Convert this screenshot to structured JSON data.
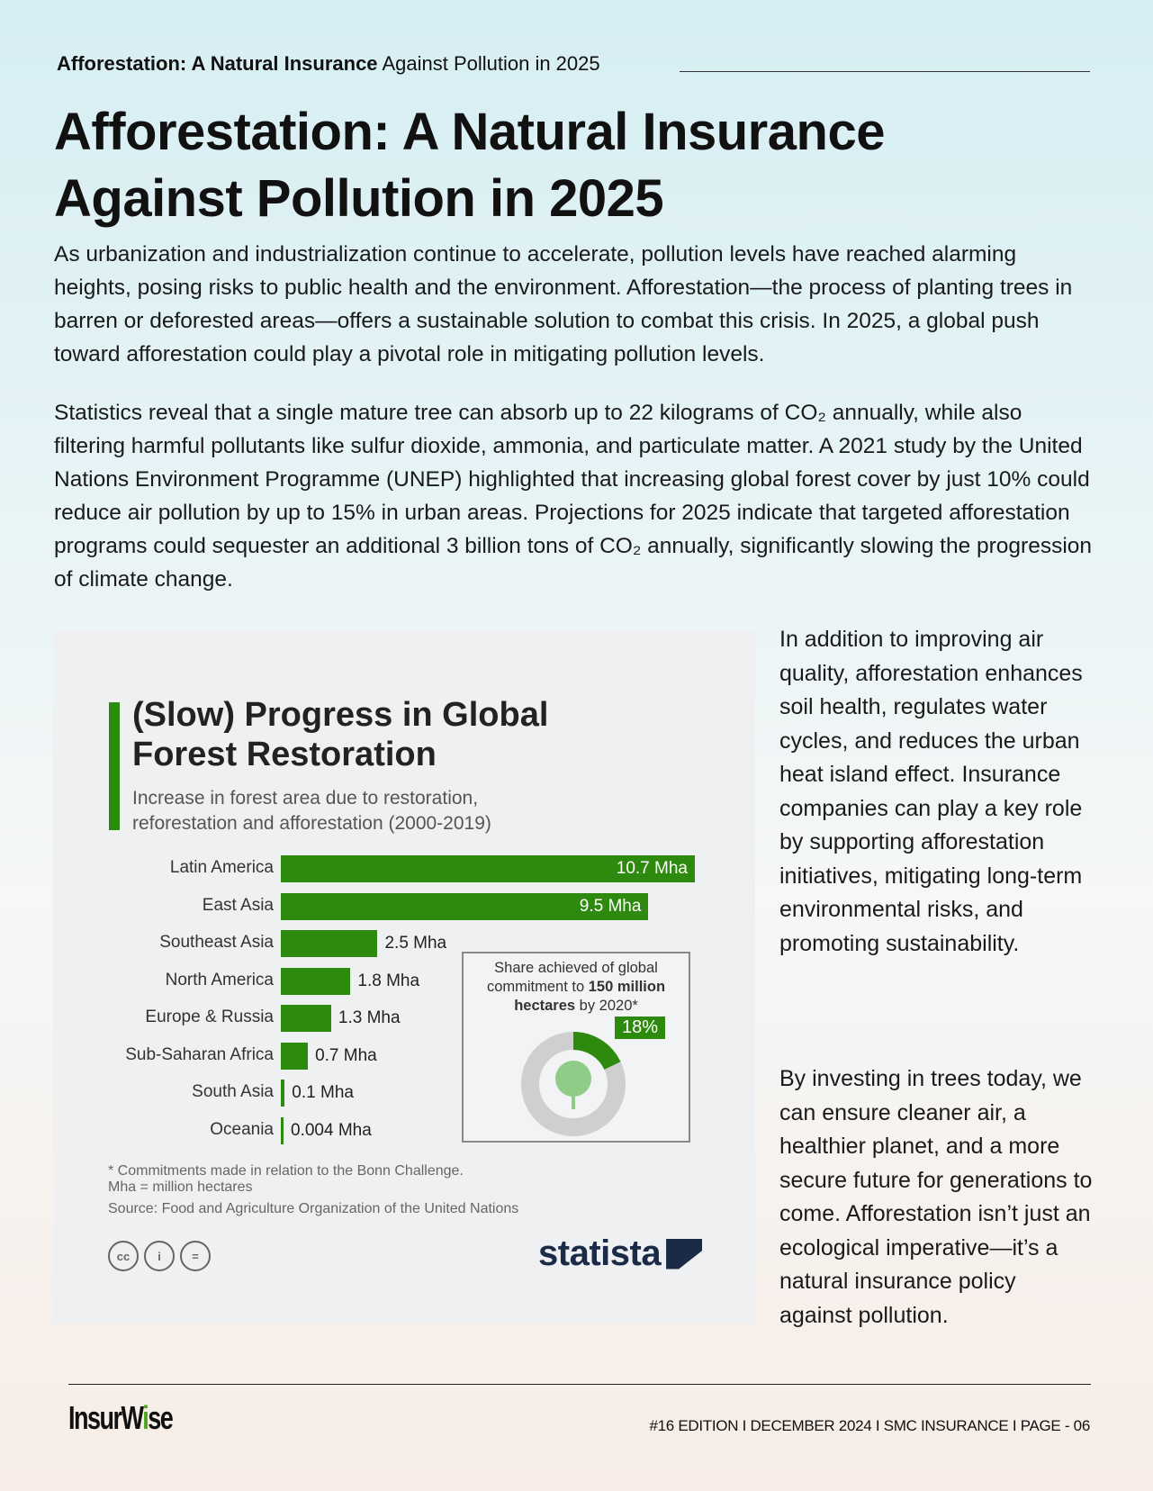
{
  "header": {
    "kicker_bold": "Afforestation: A Natural Insurance",
    "kicker_rest": " Against Pollution in 2025"
  },
  "title": "Afforestation: A Natural Insurance Against Pollution in 2025",
  "paragraphs": [
    "As urbanization and industrialization continue to accelerate, pollution levels have reached alarming heights, posing risks to public health and the environment. Afforestation—the process of planting trees in barren or deforested areas—offers a sustainable solution to combat this crisis. In 2025, a global push toward afforestation could play a pivotal role in mitigating pollution levels.",
    "Statistics reveal that a single mature tree can absorb up to 22 kilograms of CO₂ annually, while also filtering harmful pollutants like sulfur dioxide, ammonia, and particulate matter. A 2021 study by the United Nations Environment Programme (UNEP) highlighted that increasing global forest cover by just 10% could reduce air pollution by up to 15% in urban areas. Projections for 2025 indicate that targeted afforestation programs could sequester an additional 3 billion tons of CO₂ annually, significantly slowing the progression of climate change."
  ],
  "side": [
    "In addition to improving air quality, afforestation enhances soil health, regulates water cycles, and reduces the urban heat island effect. Insurance companies can play a key role by supporting afforestation initiatives, mitigating long-term environmental risks, and promoting sustainability.",
    "By investing in trees today, we can ensure cleaner air, a healthier planet, and a more secure future for generations to come. Afforestation isn’t just an ecological imperative—it’s a natural insurance policy against pollution."
  ],
  "chart_data": {
    "type": "bar",
    "orientation": "horizontal",
    "title": "(Slow) Progress in Global Forest Restoration",
    "subtitle": "Increase in forest area due to restoration, reforestation and afforestation (2000-2019)",
    "categories": [
      "Latin America",
      "East Asia",
      "Southeast Asia",
      "North America",
      "Europe & Russia",
      "Sub-Saharan Africa",
      "South Asia",
      "Oceania"
    ],
    "values": [
      10.7,
      9.5,
      2.5,
      1.8,
      1.3,
      0.7,
      0.1,
      0.004
    ],
    "value_labels": [
      "10.7 Mha",
      "9.5 Mha",
      "2.5 Mha",
      "1.8 Mha",
      "1.3 Mha",
      "0.7 Mha",
      "0.1 Mha",
      "0.004 Mha"
    ],
    "unit": "Mha",
    "color": "#2d8a0e",
    "inset": {
      "type": "pie",
      "title_pre": "Share achieved of global commitment to ",
      "title_bold": "150 million hectares",
      "title_post": " by 2020*",
      "value": 18,
      "label": "18%"
    },
    "notes": [
      "* Commitments made in relation to the Bonn Challenge.",
      "Mha = million hectares",
      "Source: Food and Agriculture Organization of the United Nations"
    ],
    "license_icons": [
      "cc",
      "i",
      "="
    ],
    "brand": "statista"
  },
  "footer": {
    "logo": "InsurWise",
    "logo_a": "InsurW",
    "logo_b": "i",
    "logo_c": "se",
    "text": "#16 EDITION I DECEMBER 2024 I SMC INSURANCE I PAGE - 06"
  }
}
